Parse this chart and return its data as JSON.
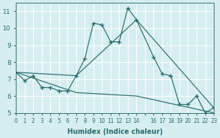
{
  "xlabel": "Humidex (Indice chaleur)",
  "bg_color": "#d6eef0",
  "grid_color": "#ffffff",
  "line_color": "#2a6b6b",
  "xlim": [
    0,
    23
  ],
  "ylim": [
    5,
    11.5
  ],
  "yticks": [
    5,
    6,
    7,
    8,
    9,
    10,
    11
  ],
  "xtick_vals": [
    0,
    1,
    2,
    3,
    4,
    5,
    6,
    7,
    8,
    9,
    10,
    11,
    12,
    13,
    14,
    15,
    16,
    17,
    18,
    19,
    20,
    21,
    22,
    23
  ],
  "xtick_labels": [
    "0",
    "1",
    "2",
    "3",
    "4",
    "5",
    "6",
    "7",
    "8",
    "9",
    "10",
    "11",
    "12",
    "13",
    "14",
    "",
    "16",
    "17",
    "18",
    "19",
    "20",
    "21",
    "22",
    "23"
  ],
  "lines": [
    {
      "x": [
        0,
        1,
        2,
        3,
        4,
        5,
        6,
        7,
        8,
        9,
        10,
        11,
        12,
        13,
        14,
        16,
        17,
        18,
        19,
        20,
        21,
        22,
        23
      ],
      "y": [
        7.4,
        6.9,
        7.2,
        6.5,
        6.5,
        6.3,
        6.3,
        7.2,
        8.2,
        10.3,
        10.2,
        9.2,
        9.2,
        11.2,
        10.5,
        8.3,
        7.3,
        7.2,
        5.5,
        5.5,
        6.0,
        5.0,
        5.3
      ],
      "marker": true
    },
    {
      "x": [
        0,
        7,
        14,
        23
      ],
      "y": [
        7.4,
        7.2,
        10.5,
        5.3
      ],
      "marker": false
    },
    {
      "x": [
        0,
        7,
        14,
        23
      ],
      "y": [
        7.4,
        6.2,
        6.0,
        5.0
      ],
      "marker": false
    }
  ]
}
